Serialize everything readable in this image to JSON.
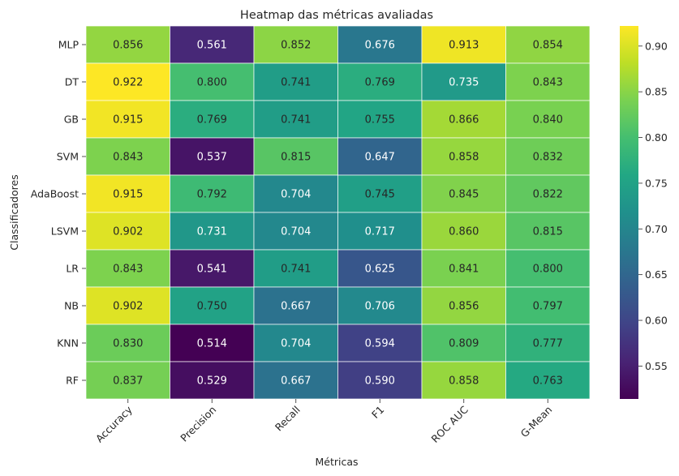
{
  "chart_data": {
    "type": "heatmap",
    "title": "Heatmap das métricas avaliadas",
    "xlabel": "Métricas",
    "ylabel": "Classificadores",
    "columns": [
      "Accuracy",
      "Precision",
      "Recall",
      "F1",
      "ROC AUC",
      "G-Mean"
    ],
    "rows": [
      "MLP",
      "DT",
      "GB",
      "SVM",
      "AdaBoost",
      "LSVM",
      "LR",
      "NB",
      "KNN",
      "RF"
    ],
    "values": [
      [
        0.856,
        0.561,
        0.852,
        0.676,
        0.913,
        0.854
      ],
      [
        0.922,
        0.8,
        0.741,
        0.769,
        0.735,
        0.843
      ],
      [
        0.915,
        0.769,
        0.741,
        0.755,
        0.866,
        0.84
      ],
      [
        0.843,
        0.537,
        0.815,
        0.647,
        0.858,
        0.832
      ],
      [
        0.915,
        0.792,
        0.704,
        0.745,
        0.845,
        0.822
      ],
      [
        0.902,
        0.731,
        0.704,
        0.717,
        0.86,
        0.815
      ],
      [
        0.843,
        0.541,
        0.741,
        0.625,
        0.841,
        0.8
      ],
      [
        0.902,
        0.75,
        0.667,
        0.706,
        0.856,
        0.797
      ],
      [
        0.83,
        0.514,
        0.704,
        0.594,
        0.809,
        0.777
      ],
      [
        0.837,
        0.529,
        0.667,
        0.59,
        0.858,
        0.763
      ]
    ],
    "colormap": "viridis",
    "vmin": 0.514,
    "vmax": 0.922,
    "colorbar_ticks": [
      0.55,
      0.6,
      0.65,
      0.7,
      0.75,
      0.8,
      0.85,
      0.9
    ],
    "annotation_format": "3 decimals",
    "grid": false,
    "cell_border_color": "#ffffff"
  }
}
